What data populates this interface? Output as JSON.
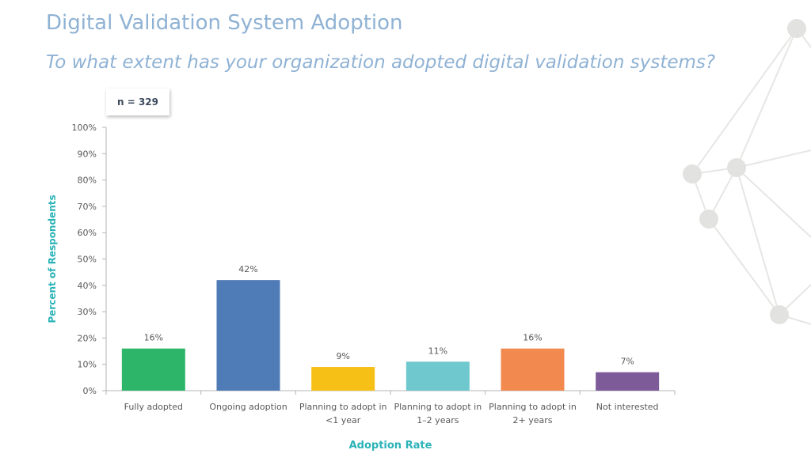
{
  "header": {
    "title": "Digital Validation System Adoption",
    "subtitle": "To what extent has your organization adopted digital validation systems?"
  },
  "sample_label": "n = 329",
  "colors": {
    "title": "#8fb2d4",
    "axis_title": "#2bb3b8",
    "bars": [
      "#2db56a",
      "#4f7bb7",
      "#f6c017",
      "#6ec8cd",
      "#f28a4f",
      "#7d5b98"
    ]
  },
  "chart_data": {
    "type": "bar",
    "categories": [
      [
        "Fully adopted"
      ],
      [
        "Ongoing adoption"
      ],
      [
        "Planning to adopt in",
        "<1 year"
      ],
      [
        "Planning to adopt in",
        "1–2 years"
      ],
      [
        "Planning to adopt in",
        "2+ years"
      ],
      [
        "Not interested"
      ]
    ],
    "values": [
      16,
      42,
      9,
      11,
      16,
      7
    ],
    "data_labels": [
      "16%",
      "42%",
      "9%",
      "11%",
      "16%",
      "7%"
    ],
    "xlabel": "Adoption Rate",
    "ylabel": "Percent of Respondents",
    "ylim": [
      0,
      100
    ],
    "yticks": [
      "0%",
      "10%",
      "20%",
      "30%",
      "40%",
      "50%",
      "60%",
      "70%",
      "80%",
      "90%",
      "100%"
    ],
    "grid": false,
    "legend": "none"
  }
}
